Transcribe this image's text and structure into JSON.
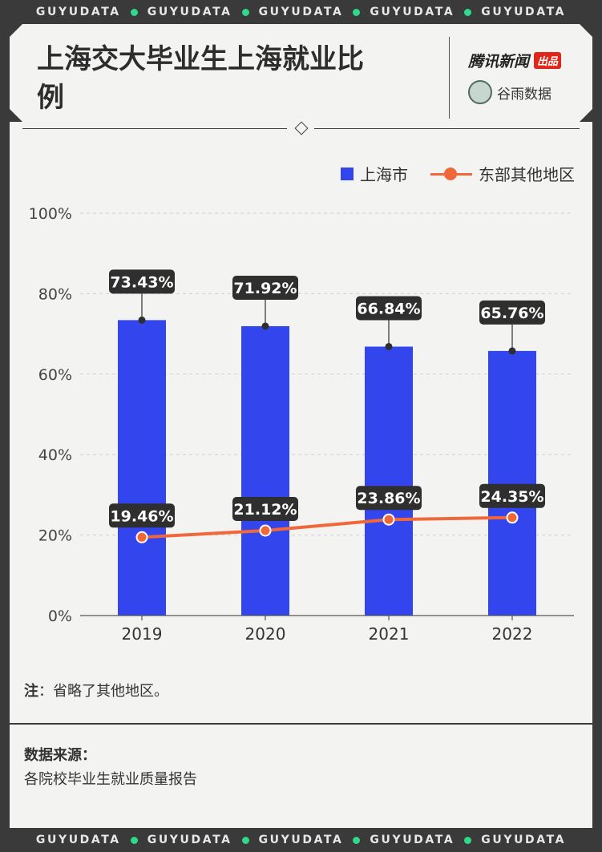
{
  "ticker": {
    "word": "GUYUDATA",
    "repeat": 5
  },
  "title": "上海交大毕业生上海就业比例",
  "logos": {
    "tencent_text": "腾讯新闻",
    "tencent_badge": "出品",
    "guyu_text": "谷雨数据"
  },
  "chart_data": {
    "type": "bar",
    "categories": [
      "2019",
      "2020",
      "2021",
      "2022"
    ],
    "series": [
      {
        "name": "上海市",
        "type": "bar",
        "color": "#3346ee",
        "values": [
          73.43,
          71.92,
          66.84,
          65.76
        ],
        "labels": [
          "73.43%",
          "71.92%",
          "66.84%",
          "65.76%"
        ]
      },
      {
        "name": "东部其他地区",
        "type": "line",
        "color": "#f0683a",
        "values": [
          19.46,
          21.12,
          23.86,
          24.35
        ],
        "labels": [
          "19.46%",
          "21.12%",
          "23.86%",
          "24.35%"
        ]
      }
    ],
    "yticks": [
      "0%",
      "20%",
      "40%",
      "60%",
      "80%",
      "100%"
    ],
    "ylim": [
      0,
      100
    ],
    "grid": true,
    "legend_position": "top-right"
  },
  "note": {
    "label": "注",
    "text": "：省略了其他地区。"
  },
  "source": {
    "title": "数据来源：",
    "text": "各院校毕业生就业质量报告"
  }
}
